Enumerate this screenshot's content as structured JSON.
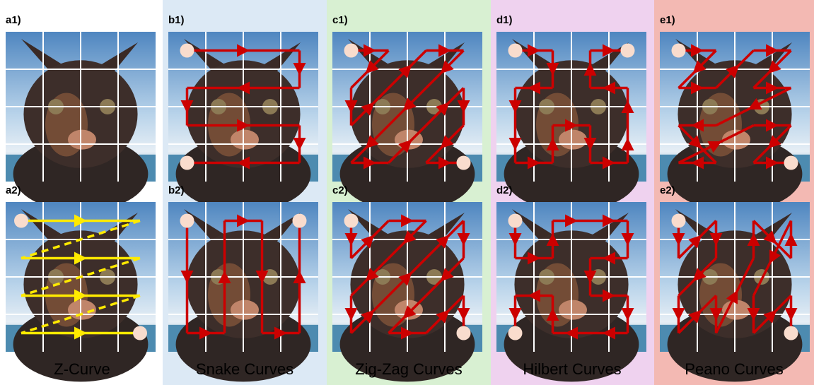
{
  "columns": [
    {
      "caption": "Z-Curve",
      "images": [
        {
          "label": "a1)"
        },
        {
          "label": "a2)"
        }
      ]
    },
    {
      "caption": "Snake Curves",
      "images": [
        {
          "label": "b1)"
        },
        {
          "label": "b2)"
        }
      ]
    },
    {
      "caption": "Zig-Zag Curves",
      "images": [
        {
          "label": "c1)"
        },
        {
          "label": "c2)"
        }
      ]
    },
    {
      "caption": "Hilbert Curves",
      "images": [
        {
          "label": "d1)"
        },
        {
          "label": "d2)"
        }
      ]
    },
    {
      "caption": "Peano Curves",
      "images": [
        {
          "label": "e1)"
        },
        {
          "label": "e2)"
        }
      ]
    }
  ]
}
